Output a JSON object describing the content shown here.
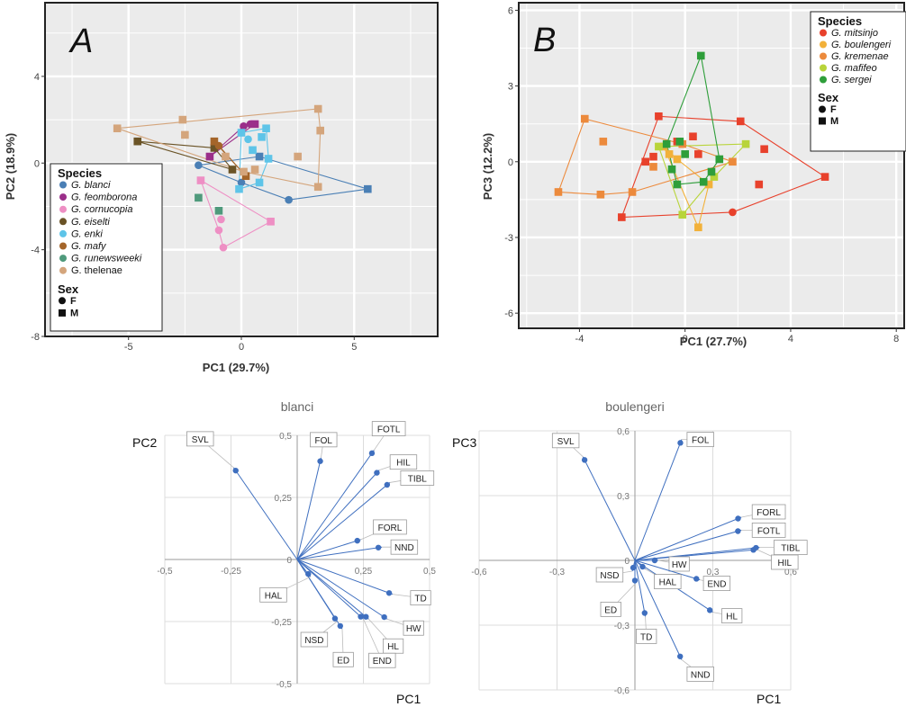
{
  "panelA": {
    "letter": "A",
    "chart_data": {
      "type": "scatter",
      "xlabel": "PC1 (29.7%)",
      "ylabel": "PC2 (18.9%)",
      "xlim": [
        -8.7,
        8.7
      ],
      "ylim": [
        -8,
        7.4
      ],
      "xticks": [
        "-5",
        "0",
        "5"
      ],
      "xtick_values": [
        -5,
        0,
        5
      ],
      "yticks": [
        "4",
        "0",
        "-4",
        "-8"
      ],
      "ytick_values": [
        4,
        0,
        -4,
        -8
      ],
      "grid": true,
      "legend_position": "bottom-left",
      "legend_title": "Species",
      "sex_title": "Sex",
      "sex_entries": [
        {
          "label": "F",
          "shape": "circle"
        },
        {
          "label": "M",
          "shape": "square"
        }
      ],
      "series": [
        {
          "name": "G. blanci",
          "color": "#4a7fb5",
          "points": [
            [
              -1.9,
              -0.1,
              "F"
            ],
            [
              0,
              -0.9,
              "F"
            ],
            [
              2.1,
              -1.7,
              "F"
            ],
            [
              5.6,
              -1.2,
              "M"
            ],
            [
              0.8,
              0.3,
              "M"
            ]
          ]
        },
        {
          "name": "G. feomborona",
          "color": "#9b2f8a",
          "points": [
            [
              -1.4,
              0.3,
              "M"
            ],
            [
              0.1,
              1.7,
              "F"
            ],
            [
              0.6,
              1.8,
              "M"
            ],
            [
              0.4,
              1.8,
              "F"
            ]
          ]
        },
        {
          "name": "G. cornucopia",
          "color": "#ee8fc4",
          "points": [
            [
              -1.8,
              -0.8,
              "M"
            ],
            [
              -1.0,
              -3.1,
              "F"
            ],
            [
              -0.8,
              -3.9,
              "F"
            ],
            [
              1.3,
              -2.7,
              "M"
            ],
            [
              -0.9,
              -2.6,
              "F"
            ]
          ]
        },
        {
          "name": "G. eiselti",
          "color": "#6a5326",
          "points": [
            [
              -4.6,
              1.0,
              "M"
            ],
            [
              -1.2,
              0.7,
              "M"
            ],
            [
              -0.4,
              -0.3,
              "M"
            ]
          ]
        },
        {
          "name": "G. enki",
          "color": "#5ec4e8",
          "points": [
            [
              0,
              1.4,
              "M"
            ],
            [
              1.1,
              1.6,
              "M"
            ],
            [
              1.2,
              0.2,
              "M"
            ],
            [
              0.8,
              -0.9,
              "M"
            ],
            [
              0.9,
              1.2,
              "M"
            ],
            [
              0.3,
              1.1,
              "F"
            ],
            [
              -0.1,
              -1.2,
              "M"
            ],
            [
              0.5,
              0.6,
              "M"
            ]
          ]
        },
        {
          "name": "G. mafy",
          "color": "#a4652a",
          "points": [
            [
              -1.0,
              0.8,
              "F"
            ],
            [
              -1.2,
              1.0,
              "M"
            ],
            [
              0.2,
              -0.6,
              "M"
            ]
          ]
        },
        {
          "name": "G. runewsweeki",
          "color": "#4f9a7c",
          "points": [
            [
              -1.9,
              -1.6,
              "M"
            ],
            [
              -1.0,
              -2.2,
              "M"
            ]
          ]
        },
        {
          "name": "G. thelenae",
          "color": "#d4a57c",
          "points": [
            [
              -5.5,
              1.6,
              "M"
            ],
            [
              -2.6,
              2.0,
              "M"
            ],
            [
              -2.5,
              1.3,
              "M"
            ],
            [
              3.4,
              2.5,
              "M"
            ],
            [
              3.5,
              1.5,
              "M"
            ],
            [
              2.5,
              0.3,
              "M"
            ],
            [
              3.4,
              -1.1,
              "M"
            ],
            [
              0.1,
              -0.4,
              "M"
            ],
            [
              -0.7,
              0.3,
              "M"
            ],
            [
              0.6,
              -0.3,
              "M"
            ]
          ]
        }
      ],
      "hulls": [
        {
          "series": "G. blanci",
          "pts": [
            [
              -1.9,
              -0.1
            ],
            [
              0.8,
              0.3
            ],
            [
              5.6,
              -1.2
            ],
            [
              2.1,
              -1.7
            ],
            [
              0,
              -0.9
            ]
          ]
        },
        {
          "series": "G. feomborona",
          "pts": [
            [
              -1.4,
              0.3
            ],
            [
              0.1,
              1.7
            ],
            [
              0.6,
              1.8
            ]
          ]
        },
        {
          "series": "G. cornucopia",
          "pts": [
            [
              -1.8,
              -0.8
            ],
            [
              -1.0,
              -3.1
            ],
            [
              -0.8,
              -3.9
            ],
            [
              1.3,
              -2.7
            ]
          ]
        },
        {
          "series": "G. eiselti",
          "pts": [
            [
              -4.6,
              1.0
            ],
            [
              -1.2,
              0.7
            ],
            [
              -0.4,
              -0.3
            ]
          ]
        },
        {
          "series": "G. enki",
          "pts": [
            [
              0,
              1.4
            ],
            [
              1.1,
              1.6
            ],
            [
              1.2,
              0.2
            ],
            [
              0.8,
              -0.9
            ],
            [
              -0.1,
              -1.2
            ]
          ]
        },
        {
          "series": "G. mafy",
          "pts": [
            [
              -1.0,
              0.8
            ],
            [
              -1.2,
              1.0
            ],
            [
              0.2,
              -0.6
            ]
          ]
        },
        {
          "series": "G. thelenae",
          "pts": [
            [
              -5.5,
              1.6
            ],
            [
              3.4,
              2.5
            ],
            [
              3.5,
              1.5
            ],
            [
              3.4,
              -1.1
            ],
            [
              0.1,
              -0.4
            ]
          ]
        }
      ]
    }
  },
  "panelB": {
    "letter": "B",
    "chart_data": {
      "type": "scatter",
      "xlabel": "PC1 (27.7%)",
      "ylabel": "PC3 (12.2%)",
      "xlim": [
        -6.3,
        8.3
      ],
      "ylim": [
        -6.6,
        6.3
      ],
      "xticks": [
        "-4",
        "0",
        "4",
        "8"
      ],
      "xtick_values": [
        -4,
        0,
        4,
        8
      ],
      "yticks": [
        "6",
        "3",
        "0",
        "-3",
        "-6"
      ],
      "ytick_values": [
        6,
        3,
        0,
        -3,
        -6
      ],
      "grid": true,
      "legend_position": "top-right",
      "legend_title": "Species",
      "sex_title": "Sex",
      "sex_entries": [
        {
          "label": "F",
          "shape": "circle"
        },
        {
          "label": "M",
          "shape": "square"
        }
      ],
      "series": [
        {
          "name": "G. mitsinjo",
          "color": "#e8412c",
          "points": [
            [
              -1.0,
              1.8,
              "M"
            ],
            [
              0.3,
              1.0,
              "M"
            ],
            [
              2.1,
              1.6,
              "M"
            ],
            [
              3.0,
              0.5,
              "M"
            ],
            [
              5.3,
              -0.6,
              "M"
            ],
            [
              2.8,
              -0.9,
              "M"
            ],
            [
              1.8,
              -2.0,
              "F"
            ],
            [
              -2.4,
              -2.2,
              "M"
            ],
            [
              -1.5,
              0.0,
              "M"
            ],
            [
              -1.2,
              0.2,
              "M"
            ],
            [
              -0.3,
              0.8,
              "M"
            ],
            [
              0.5,
              0.3,
              "M"
            ]
          ]
        },
        {
          "name": "G. boulengeri",
          "color": "#f2b13a",
          "points": [
            [
              -0.8,
              0.6,
              "M"
            ],
            [
              0.5,
              -2.6,
              "M"
            ],
            [
              0.9,
              -0.9,
              "M"
            ],
            [
              -0.6,
              0.3,
              "M"
            ],
            [
              -0.3,
              0.1,
              "M"
            ]
          ]
        },
        {
          "name": "G. kremenae",
          "color": "#ec8a3c",
          "points": [
            [
              -4.8,
              -1.2,
              "M"
            ],
            [
              -3.8,
              1.7,
              "M"
            ],
            [
              -3.1,
              0.8,
              "M"
            ],
            [
              -3.2,
              -1.3,
              "M"
            ],
            [
              -2.0,
              -1.2,
              "M"
            ],
            [
              -1.2,
              -0.2,
              "M"
            ],
            [
              1.8,
              0.0,
              "M"
            ],
            [
              -0.1,
              0.7,
              "M"
            ]
          ]
        },
        {
          "name": "G. mafifeo",
          "color": "#b8d43a",
          "points": [
            [
              2.3,
              0.7,
              "M"
            ],
            [
              -0.1,
              -2.1,
              "M"
            ],
            [
              -1.0,
              0.6,
              "M"
            ],
            [
              1.1,
              -0.6,
              "M"
            ]
          ]
        },
        {
          "name": "G. sergei",
          "color": "#2e9e3a",
          "points": [
            [
              0.6,
              4.2,
              "M"
            ],
            [
              -0.7,
              0.7,
              "M"
            ],
            [
              -0.2,
              0.8,
              "M"
            ],
            [
              1.3,
              0.1,
              "M"
            ],
            [
              1.0,
              -0.4,
              "M"
            ],
            [
              -0.3,
              -0.9,
              "M"
            ],
            [
              0.7,
              -0.8,
              "M"
            ],
            [
              0.0,
              0.3,
              "M"
            ],
            [
              -0.5,
              -0.3,
              "M"
            ]
          ]
        }
      ],
      "hulls": [
        {
          "series": "G. mitsinjo",
          "pts": [
            [
              -2.4,
              -2.2
            ],
            [
              -1.0,
              1.8
            ],
            [
              2.1,
              1.6
            ],
            [
              5.3,
              -0.6
            ],
            [
              1.8,
              -2.0
            ]
          ]
        },
        {
          "series": "G. boulengeri",
          "pts": [
            [
              -0.8,
              0.6
            ],
            [
              -0.3,
              0.1
            ],
            [
              0.9,
              -0.9
            ],
            [
              0.5,
              -2.6
            ]
          ]
        },
        {
          "series": "G. kremenae",
          "pts": [
            [
              -4.8,
              -1.2
            ],
            [
              -3.8,
              1.7
            ],
            [
              -0.1,
              0.7
            ],
            [
              1.8,
              0.0
            ],
            [
              -2.0,
              -1.2
            ],
            [
              -3.2,
              -1.3
            ]
          ]
        },
        {
          "series": "G. mafifeo",
          "pts": [
            [
              -1.0,
              0.6
            ],
            [
              2.3,
              0.7
            ],
            [
              1.1,
              -0.6
            ],
            [
              -0.1,
              -2.1
            ]
          ]
        },
        {
          "series": "G. sergei",
          "pts": [
            [
              0.6,
              4.2
            ],
            [
              1.3,
              0.1
            ],
            [
              0.7,
              -0.8
            ],
            [
              -0.3,
              -0.9
            ],
            [
              -0.7,
              0.7
            ]
          ]
        }
      ]
    }
  },
  "panelC": {
    "chart_data": {
      "type": "scatter",
      "title": "blanci",
      "xlabel": "PC1",
      "ylabel": "PC2",
      "xlim": [
        -0.5,
        0.5
      ],
      "ylim": [
        -0.5,
        0.5
      ],
      "xticks": [
        "-0,5",
        "-0,25",
        "0",
        "0,25",
        "0,5"
      ],
      "xtick_values": [
        -0.5,
        -0.25,
        0,
        0.25,
        0.5
      ],
      "yticks": [
        "0,5",
        "0,25",
        "0",
        "-0,25",
        "-0,5"
      ],
      "ytick_values": [
        0.5,
        0.25,
        0,
        -0.25,
        -0.5
      ],
      "grid": true,
      "vectors": [
        {
          "label": "SVL",
          "x": -0.24,
          "y": 0.37
        },
        {
          "label": "FOL",
          "x": 0.09,
          "y": 0.41
        },
        {
          "label": "FOTL",
          "x": 0.29,
          "y": 0.44
        },
        {
          "label": "HIL",
          "x": 0.31,
          "y": 0.36
        },
        {
          "label": "TIBL",
          "x": 0.35,
          "y": 0.31
        },
        {
          "label": "FORL",
          "x": 0.24,
          "y": 0.08
        },
        {
          "label": "NND",
          "x": 0.32,
          "y": 0.05
        },
        {
          "label": "TD",
          "x": 0.36,
          "y": -0.14
        },
        {
          "label": "HW",
          "x": 0.34,
          "y": -0.24
        },
        {
          "label": "HL",
          "x": 0.27,
          "y": -0.24
        },
        {
          "label": "END",
          "x": 0.25,
          "y": -0.24
        },
        {
          "label": "ED",
          "x": 0.17,
          "y": -0.28
        },
        {
          "label": "NSD",
          "x": 0.15,
          "y": -0.25
        },
        {
          "label": "HAL",
          "x": 0.05,
          "y": -0.07
        }
      ]
    }
  },
  "panelD": {
    "chart_data": {
      "type": "scatter",
      "title": "boulengeri",
      "xlabel": "PC1",
      "ylabel": "PC3",
      "xlim": [
        -0.6,
        0.6
      ],
      "ylim": [
        -0.6,
        0.6
      ],
      "xticks": [
        "-0,6",
        "-0,3",
        "0",
        "0,3",
        "0,6"
      ],
      "xtick_values": [
        -0.6,
        -0.3,
        0,
        0.3,
        0.6
      ],
      "yticks": [
        "0,6",
        "0,3",
        "0",
        "-0,3",
        "-0,6"
      ],
      "ytick_values": [
        0.6,
        0.3,
        0,
        -0.3,
        -0.6
      ],
      "grid": true,
      "vectors": [
        {
          "label": "SVL",
          "x": -0.2,
          "y": 0.48
        },
        {
          "label": "FOL",
          "x": 0.18,
          "y": 0.56
        },
        {
          "label": "FORL",
          "x": 0.41,
          "y": 0.2
        },
        {
          "label": "FOTL",
          "x": 0.41,
          "y": 0.14
        },
        {
          "label": "TIBL",
          "x": 0.48,
          "y": 0.06
        },
        {
          "label": "HIL",
          "x": 0.47,
          "y": 0.05
        },
        {
          "label": "HW",
          "x": 0.09,
          "y": 0.0
        },
        {
          "label": "END",
          "x": 0.25,
          "y": -0.09
        },
        {
          "label": "HL",
          "x": 0.3,
          "y": -0.24
        },
        {
          "label": "NND",
          "x": 0.18,
          "y": -0.46
        },
        {
          "label": "TD",
          "x": 0.04,
          "y": -0.26
        },
        {
          "label": "HAL",
          "x": 0.04,
          "y": -0.04
        },
        {
          "label": "ED",
          "x": 0.0,
          "y": -0.11
        },
        {
          "label": "NSD",
          "x": -0.01,
          "y": -0.05
        }
      ]
    }
  }
}
